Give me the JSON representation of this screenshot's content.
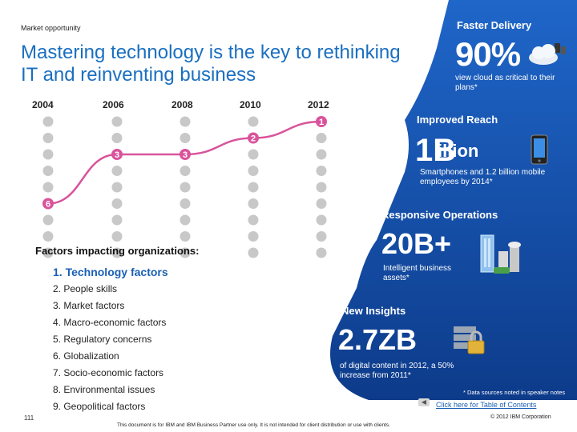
{
  "header": {
    "kicker": "Market opportunity",
    "headline": "Mastering technology is the key to rethinking IT and reinventing business"
  },
  "ranking_chart": {
    "years": [
      "2004",
      "2006",
      "2008",
      "2010",
      "2012"
    ],
    "technology_rank": [
      6,
      3,
      3,
      2,
      1
    ],
    "rank_count": 9,
    "line_color": "#d9539b"
  },
  "factors": {
    "title": "Factors impacting organizations:",
    "items": [
      "1. Technology factors",
      "2. People skills",
      "3. Market factors",
      "4. Macro-economic factors",
      "5. Regulatory concerns",
      "6. Globalization",
      "7. Socio-economic factors",
      "8. Environmental issues",
      "9. Geopolitical factors"
    ]
  },
  "stats": {
    "faster_delivery": {
      "label": "Faster Delivery",
      "value": "90%",
      "desc": "view cloud as critical to their plans*",
      "icon": "cloud-icon"
    },
    "improved_reach": {
      "label": "Improved Reach",
      "value_big": "1B",
      "value_rest": "illion",
      "desc": "Smartphones and 1.2 billion mobile employees by 2014*",
      "icon": "smartphone-icon"
    },
    "responsive_operations": {
      "label": "Responsive Operations",
      "value": "20B+",
      "desc": "Intelligent business assets*",
      "icon": "buildings-icon"
    },
    "new_insights": {
      "label": "New Insights",
      "value": "2.7ZB",
      "desc": "of digital content in 2012, a 50% increase from 2011*",
      "icon": "database-lock-icon"
    }
  },
  "notes": {
    "sources": "* Data sources noted in speaker notes",
    "toc_link": "Click here for Table of Contents"
  },
  "footer": {
    "page_number": "111",
    "disclaimer": "This document is for IBM and IBM Business Partner use only.  It is not intended for client distribution or use with clients.",
    "copyright": "© 2012 IBM Corporation"
  },
  "colors": {
    "panel_blue": "#1b5fbf",
    "panel_blue_dark": "#0f3f8f",
    "headline_blue": "#1a6fc0",
    "badge_pink": "#d9539b",
    "dot_gray": "#c8c8c8"
  }
}
